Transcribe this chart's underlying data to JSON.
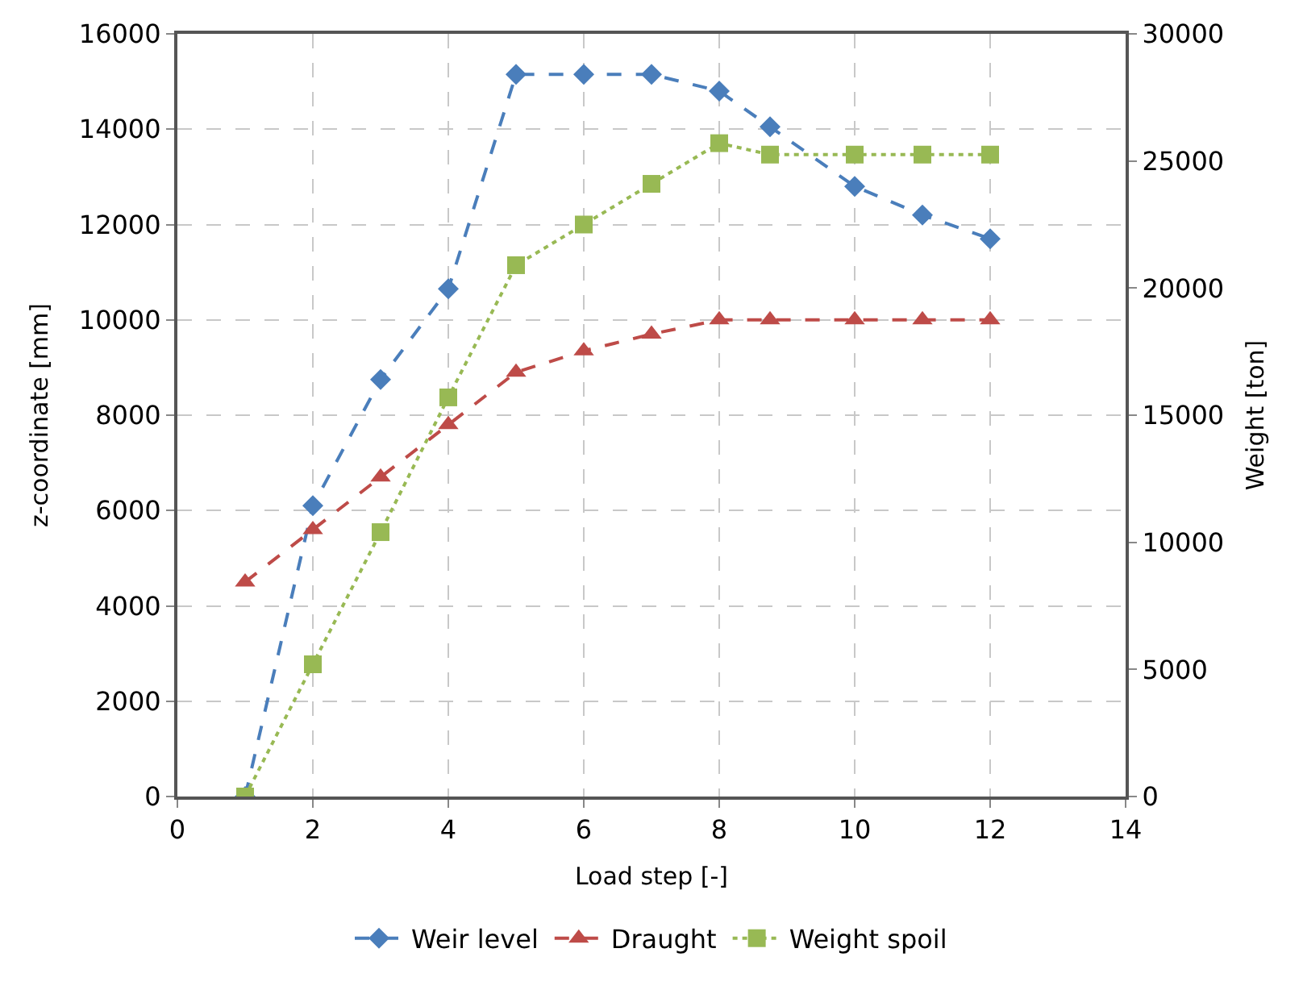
{
  "chart_data": {
    "type": "line",
    "xlabel": "Load step [-]",
    "ylabel": "z-coordinate [mm]",
    "y2label": "Weight [ton]",
    "xlim": [
      0,
      14
    ],
    "xticks": [
      0,
      2,
      4,
      6,
      8,
      10,
      12,
      14
    ],
    "ylim": [
      0,
      16000
    ],
    "yticks": [
      0,
      2000,
      4000,
      6000,
      8000,
      10000,
      12000,
      14000,
      16000
    ],
    "y2lim": [
      0,
      30000
    ],
    "y2ticks": [
      0,
      5000,
      10000,
      15000,
      20000,
      25000,
      30000
    ],
    "grid": true,
    "legend": "bottom",
    "x": [
      1,
      2,
      3,
      4,
      5,
      6,
      7,
      8,
      8.75,
      10,
      11,
      12
    ],
    "series": [
      {
        "name": "Weir level",
        "color": "#4a7ebb",
        "marker": "diamond",
        "line_style": "dashed",
        "values": [
          0,
          6100,
          8750,
          10650,
          15150,
          15150,
          15150,
          14800,
          14050,
          12800,
          12200,
          11700
        ]
      },
      {
        "name": "Draught",
        "color": "#be4b48",
        "marker": "triangle",
        "line_style": "dashed",
        "values": [
          4500,
          5600,
          6700,
          7800,
          8900,
          9350,
          9700,
          10000,
          10000,
          10000,
          10000,
          10000
        ]
      },
      {
        "name": "Weight spoil",
        "color": "#98b954",
        "marker": "square",
        "line_style": "dotted",
        "axis": "y2",
        "values": [
          0,
          5200,
          10400,
          15700,
          20900,
          22500,
          24100,
          25700,
          25250,
          25250,
          25250,
          25250
        ]
      }
    ]
  }
}
